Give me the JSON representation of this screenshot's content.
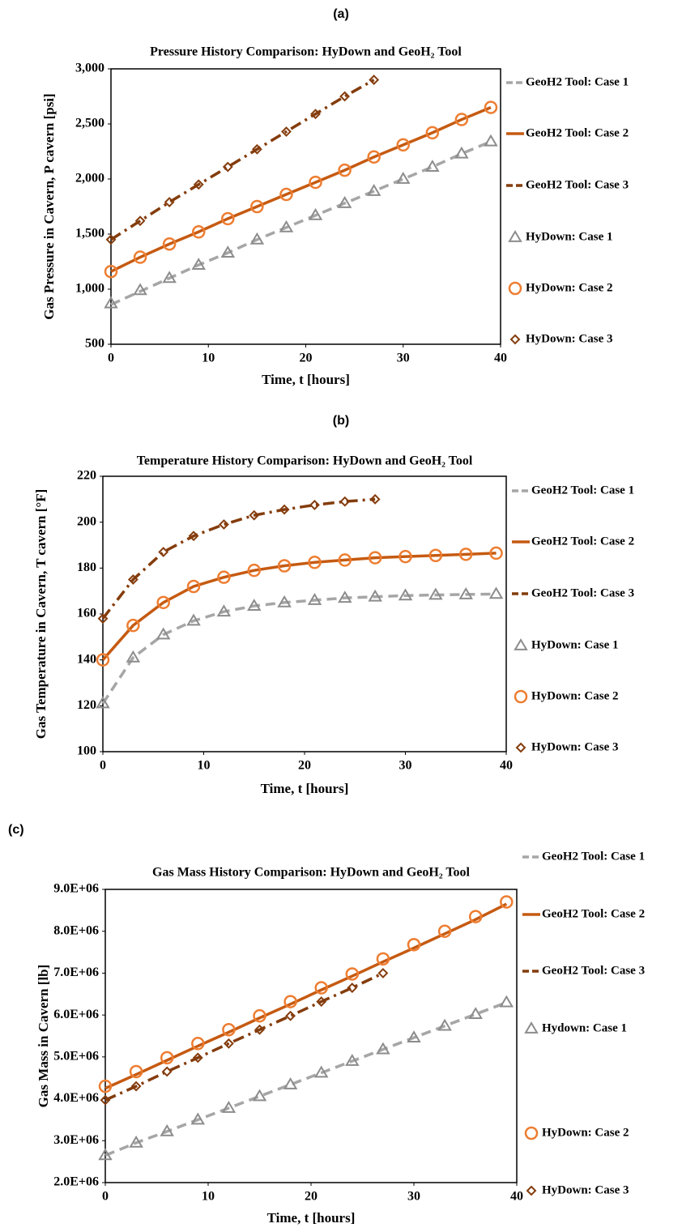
{
  "chart_data": [
    {
      "type": "line",
      "label": "(a)",
      "title": "Pressure History Comparison: HyDown  and GeoH₂ Tool",
      "x_label": "Time, t [hours]",
      "y_label": "Gas Pressure in Cavern, P cavern [psi]",
      "xlim": [
        0,
        40
      ],
      "xticks": [
        0,
        10,
        20,
        30,
        40
      ],
      "ylim": [
        500,
        3000
      ],
      "yticks": [
        {
          "value": 500,
          "label": "500"
        },
        {
          "value": 1000,
          "label": "1,000"
        },
        {
          "value": 1500,
          "label": "1,500"
        },
        {
          "value": 2000,
          "label": "2,000"
        },
        {
          "value": 2500,
          "label": "2,500"
        },
        {
          "value": 3000,
          "label": "3,000"
        }
      ],
      "x": [
        0,
        3,
        6,
        9,
        12,
        15,
        18,
        21,
        24,
        27,
        30,
        33,
        36,
        39
      ],
      "series": [
        {
          "name": "GeoH2 Tool: Case 1",
          "kind": "line",
          "style": "dashed",
          "color": "#a6a6a6",
          "values": [
            860,
            980,
            1100,
            1220,
            1330,
            1450,
            1560,
            1670,
            1780,
            1890,
            2000,
            2110,
            2230,
            2340
          ]
        },
        {
          "name": "GeoH2 Tool: Case 2",
          "kind": "line",
          "style": "solid",
          "color": "#c55a11",
          "values": [
            1160,
            1290,
            1410,
            1520,
            1640,
            1750,
            1860,
            1970,
            2080,
            2200,
            2310,
            2420,
            2540,
            2650
          ]
        },
        {
          "name": "GeoH2 Tool: Case 3",
          "kind": "line",
          "style": "dashdot",
          "color": "#843c0c",
          "values": [
            1450,
            1620,
            1790,
            1950,
            2110,
            2270,
            2430,
            2590,
            2750,
            2900,
            null,
            null,
            null,
            null
          ]
        },
        {
          "name": "HyDown: Case 1",
          "kind": "marker",
          "marker": "triangle",
          "color": "#8c8c8c",
          "values": [
            870,
            990,
            1100,
            1220,
            1330,
            1450,
            1560,
            1670,
            1780,
            1890,
            2000,
            2110,
            2230,
            2340
          ]
        },
        {
          "name": "HyDown: Case 2",
          "kind": "marker",
          "marker": "circle",
          "color": "#ed7d31",
          "values": [
            1160,
            1290,
            1410,
            1520,
            1640,
            1750,
            1860,
            1970,
            2080,
            2200,
            2310,
            2420,
            2540,
            2650
          ]
        },
        {
          "name": "HyDown: Case 3",
          "kind": "marker",
          "marker": "diamond",
          "color": "#843c0c",
          "values": [
            1450,
            1620,
            1790,
            1950,
            2110,
            2270,
            2430,
            2590,
            2750,
            2900,
            null,
            null,
            null,
            null
          ]
        }
      ]
    },
    {
      "type": "line",
      "label": "(b)",
      "title": "Temperature History Comparison: HyDown  and GeoH₂ Tool",
      "x_label": "Time, t [hours]",
      "y_label": "Gas Temperature in Cavern, T cavern [°F]",
      "xlim": [
        0,
        40
      ],
      "xticks": [
        0,
        10,
        20,
        30,
        40
      ],
      "ylim": [
        100,
        220
      ],
      "yticks": [
        100,
        120,
        140,
        160,
        180,
        200,
        220
      ],
      "x": [
        0,
        3,
        6,
        9,
        12,
        15,
        18,
        21,
        24,
        27,
        30,
        33,
        36,
        39
      ],
      "series": [
        {
          "name": "GeoH2 Tool: Case 1",
          "kind": "line",
          "style": "dashed",
          "color": "#a6a6a6",
          "values": [
            121,
            141,
            151,
            157,
            161,
            163.5,
            165,
            166,
            167,
            167.5,
            168,
            168.3,
            168.5,
            168.7
          ]
        },
        {
          "name": "GeoH2 Tool: Case 2",
          "kind": "line",
          "style": "solid",
          "color": "#c55a11",
          "values": [
            140,
            155,
            165,
            172,
            176,
            179,
            181,
            182.5,
            183.5,
            184.5,
            185,
            185.5,
            186,
            186.5
          ]
        },
        {
          "name": "GeoH2 Tool: Case 3",
          "kind": "line",
          "style": "dashdot",
          "color": "#843c0c",
          "values": [
            158,
            175,
            187,
            194,
            199,
            203,
            205.5,
            207.5,
            209,
            210,
            null,
            null,
            null,
            null
          ]
        },
        {
          "name": "HyDown: Case 1",
          "kind": "marker",
          "marker": "triangle",
          "color": "#8c8c8c",
          "values": [
            121,
            141,
            151,
            157,
            161,
            163.5,
            165,
            166,
            167,
            167.5,
            168,
            168.3,
            168.5,
            168.7
          ]
        },
        {
          "name": "HyDown: Case 2",
          "kind": "marker",
          "marker": "circle",
          "color": "#ed7d31",
          "values": [
            140,
            155,
            165,
            172,
            176,
            179,
            181,
            182.5,
            183.5,
            184.5,
            185,
            185.5,
            186,
            186.5
          ]
        },
        {
          "name": "HyDown: Case 3",
          "kind": "marker",
          "marker": "diamond",
          "color": "#843c0c",
          "values": [
            158,
            175,
            187,
            194,
            199,
            203,
            205.5,
            207.5,
            209,
            210,
            null,
            null,
            null,
            null
          ]
        }
      ]
    },
    {
      "type": "line",
      "label": "(c)",
      "title": "Gas Mass History Comparison: HyDown and GeoH₂ Tool",
      "x_label": "Time, t [hours]",
      "y_label": "Gas Mass in Cavern [lb]",
      "xlim": [
        0,
        40
      ],
      "xticks": [
        0,
        10,
        20,
        30,
        40
      ],
      "ylim": [
        2000000,
        9000000
      ],
      "yticks": [
        {
          "value": 2000000,
          "label": "2.0E+06"
        },
        {
          "value": 3000000,
          "label": "3.0E+06"
        },
        {
          "value": 4000000,
          "label": "4.0E+06"
        },
        {
          "value": 5000000,
          "label": "5.0E+06"
        },
        {
          "value": 6000000,
          "label": "6.0E+06"
        },
        {
          "value": 7000000,
          "label": "7.0E+06"
        },
        {
          "value": 8000000,
          "label": "8.0E+06"
        },
        {
          "value": 9000000,
          "label": "9.0E+06"
        }
      ],
      "x": [
        0,
        3,
        6,
        9,
        12,
        15,
        18,
        21,
        24,
        27,
        30,
        33,
        36,
        39
      ],
      "series": [
        {
          "name": "GeoH2 Tool: Case 1",
          "kind": "line",
          "style": "dashed",
          "color": "#a6a6a6",
          "values": [
            2650000,
            2950000,
            3220000,
            3500000,
            3780000,
            4060000,
            4340000,
            4620000,
            4900000,
            5180000,
            5460000,
            5740000,
            6020000,
            6300000
          ]
        },
        {
          "name": "GeoH2 Tool: Case 2",
          "kind": "line",
          "style": "solid",
          "color": "#c55a11",
          "values": [
            4250000,
            4580000,
            4920000,
            5260000,
            5590000,
            5930000,
            6260000,
            6600000,
            6930000,
            7270000,
            7600000,
            7940000,
            8280000,
            8650000
          ]
        },
        {
          "name": "GeoH2 Tool: Case 3",
          "kind": "line",
          "style": "dashdot",
          "color": "#843c0c",
          "values": [
            3970000,
            4300000,
            4650000,
            4980000,
            5320000,
            5650000,
            5980000,
            6320000,
            6650000,
            7000000,
            null,
            null,
            null,
            null
          ]
        },
        {
          "name": "Hydown: Case 1",
          "kind": "marker",
          "marker": "triangle",
          "color": "#8c8c8c",
          "values": [
            2650000,
            2950000,
            3220000,
            3500000,
            3780000,
            4060000,
            4340000,
            4620000,
            4900000,
            5180000,
            5460000,
            5740000,
            6020000,
            6300000
          ]
        },
        {
          "name": "HyDown: Case 2",
          "kind": "marker",
          "marker": "circle",
          "color": "#ed7d31",
          "values": [
            4300000,
            4650000,
            4980000,
            5320000,
            5650000,
            5980000,
            6320000,
            6650000,
            6980000,
            7340000,
            7680000,
            8000000,
            8350000,
            8700000
          ]
        },
        {
          "name": "HyDown: Case 3",
          "kind": "marker",
          "marker": "diamond",
          "color": "#843c0c",
          "values": [
            3970000,
            4300000,
            4650000,
            4980000,
            5320000,
            5650000,
            5980000,
            6320000,
            6650000,
            7000000,
            null,
            null,
            null,
            null
          ]
        }
      ]
    }
  ]
}
